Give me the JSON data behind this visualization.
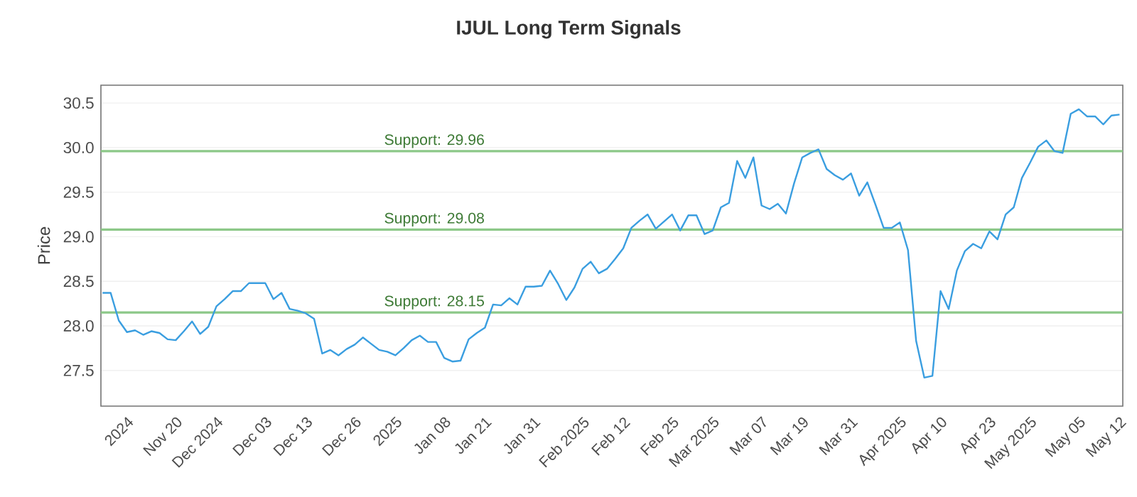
{
  "chart_data": {
    "type": "line",
    "title": "IJUL Long Term Signals",
    "ylabel": "Price",
    "categories": [
      null,
      null,
      null,
      "2024",
      null,
      null,
      null,
      null,
      null,
      "Nov 20",
      null,
      null,
      null,
      null,
      "Dec 2024",
      null,
      null,
      null,
      null,
      null,
      "Dec 03",
      null,
      null,
      null,
      null,
      "Dec 13",
      null,
      null,
      null,
      null,
      null,
      "Dec 26",
      null,
      null,
      null,
      null,
      "2025",
      null,
      null,
      null,
      null,
      null,
      "Jan 08",
      null,
      null,
      null,
      null,
      "Jan 21",
      null,
      null,
      null,
      null,
      null,
      "Jan 31",
      null,
      null,
      null,
      null,
      null,
      "Feb 2025",
      null,
      null,
      null,
      null,
      "Feb 12",
      null,
      null,
      null,
      null,
      null,
      "Feb 25",
      null,
      null,
      null,
      null,
      "Mar 2025",
      null,
      null,
      null,
      null,
      null,
      "Mar 07",
      null,
      null,
      null,
      null,
      "Mar 19",
      null,
      null,
      null,
      null,
      null,
      "Mar 31",
      null,
      null,
      null,
      null,
      null,
      "Apr 2025",
      null,
      null,
      null,
      null,
      "Apr 10",
      null,
      null,
      null,
      null,
      null,
      "Apr 23",
      null,
      null,
      null,
      null,
      "May 2025",
      null,
      null,
      null,
      null,
      null,
      "May 05",
      null,
      null,
      null,
      null,
      "May 12"
    ],
    "series": [
      {
        "color": "#3a9ee0",
        "values": [
          28.37,
          28.37,
          28.06,
          27.93,
          27.95,
          27.9,
          27.94,
          27.92,
          27.85,
          27.84,
          27.94,
          28.05,
          27.91,
          27.99,
          28.22,
          28.3,
          28.39,
          28.39,
          28.48,
          28.48,
          28.48,
          28.3,
          28.37,
          28.19,
          28.17,
          28.14,
          28.08,
          27.69,
          27.73,
          27.67,
          27.74,
          27.79,
          27.87,
          27.8,
          27.73,
          27.71,
          27.67,
          27.75,
          27.84,
          27.89,
          27.82,
          27.82,
          27.64,
          27.6,
          27.61,
          27.85,
          27.92,
          27.98,
          28.24,
          28.23,
          28.31,
          28.24,
          28.44,
          28.44,
          28.45,
          28.62,
          28.47,
          28.29,
          28.43,
          28.64,
          28.72,
          28.59,
          28.64,
          28.75,
          28.87,
          29.1,
          29.18,
          29.25,
          29.09,
          29.17,
          29.25,
          29.07,
          29.24,
          29.24,
          29.03,
          29.07,
          29.33,
          29.38,
          29.85,
          29.66,
          29.89,
          29.35,
          29.31,
          29.37,
          29.26,
          29.6,
          29.89,
          29.94,
          29.98,
          29.76,
          29.69,
          29.64,
          29.71,
          29.46,
          29.61,
          29.36,
          29.1,
          29.1,
          29.16,
          28.85,
          27.83,
          27.42,
          27.44,
          28.39,
          28.19,
          28.62,
          28.84,
          28.92,
          28.87,
          29.06,
          28.97,
          29.25,
          29.33,
          29.66,
          29.83,
          30.01,
          30.08,
          29.96,
          29.94,
          30.38,
          30.43,
          30.35,
          30.35,
          30.26,
          30.36,
          30.37
        ]
      }
    ],
    "ylim": [
      27.1,
      30.7
    ],
    "yticks": [
      {
        "value": 27.5,
        "label": "27.5"
      },
      {
        "value": 28.0,
        "label": "28.0"
      },
      {
        "value": 28.5,
        "label": "28.5"
      },
      {
        "value": 29.0,
        "label": "29.0"
      },
      {
        "value": 29.5,
        "label": "29.5"
      },
      {
        "value": 30.0,
        "label": "30.0"
      },
      {
        "value": 30.5,
        "label": "30.5"
      }
    ],
    "grid": "y",
    "ref_lines": [
      {
        "axis": "y",
        "value": 29.96,
        "label": "Support: 29.96",
        "color": "#8cc888"
      },
      {
        "axis": "y",
        "value": 29.08,
        "label": "Support: 29.08",
        "color": "#8cc888"
      },
      {
        "axis": "y",
        "value": 28.15,
        "label": "Support: 28.15",
        "color": "#8cc888"
      }
    ]
  }
}
